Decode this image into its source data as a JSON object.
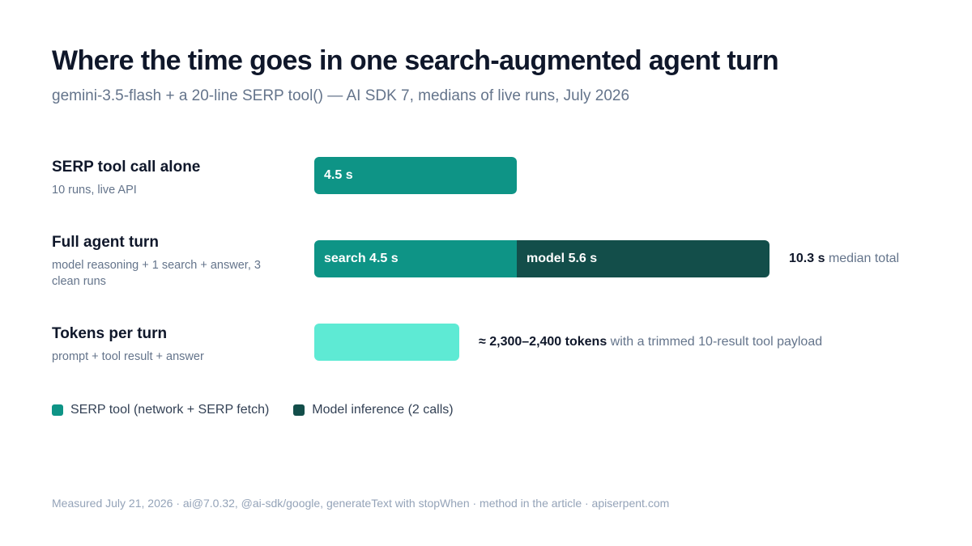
{
  "title": "Where the time goes in one search-augmented agent turn",
  "subtitle": "gemini-3.5-flash + a 20-line SERP tool() — AI SDK 7, medians of live runs, July 2026",
  "footer": "Measured July 21, 2026 · ai@7.0.32, @ai-sdk/google, generateText with stopWhen · method in the article · apiserpent.com",
  "colors": {
    "serp_tool": "#0e9486",
    "model_inference": "#134e4a",
    "tokens": "#5eead4"
  },
  "legend": [
    {
      "label": "SERP tool (network + SERP fetch)",
      "color": "#0e9486"
    },
    {
      "label": "Model inference (2 calls)",
      "color": "#134e4a"
    }
  ],
  "chart_data": {
    "type": "bar",
    "orientation": "horizontal",
    "stacked": true,
    "unit": "s",
    "xlim": [
      0,
      10.3
    ],
    "grid": false,
    "legend_position": "bottom-left",
    "rows": [
      {
        "name": "SERP tool call alone",
        "description": "10 runs, live API",
        "segments": [
          {
            "series": "SERP tool (network + SERP fetch)",
            "value": 4.5,
            "label": "4.5 s"
          }
        ]
      },
      {
        "name": "Full agent turn",
        "description": "model reasoning + 1 search + answer, 3 clean runs",
        "segments": [
          {
            "series": "SERP tool (network + SERP fetch)",
            "value": 4.5,
            "label": "search 4.5 s"
          },
          {
            "series": "Model inference (2 calls)",
            "value": 5.6,
            "label": "model 5.6 s"
          }
        ],
        "annotation_value": "10.3 s",
        "annotation_text": "median total"
      },
      {
        "name": "Tokens per turn",
        "description": "prompt + tool result + answer",
        "tokens_bar_fraction": 0.29,
        "annotation_value": "≈ 2,300–2,400 tokens",
        "annotation_text": "with a trimmed 10-result tool payload"
      }
    ]
  }
}
